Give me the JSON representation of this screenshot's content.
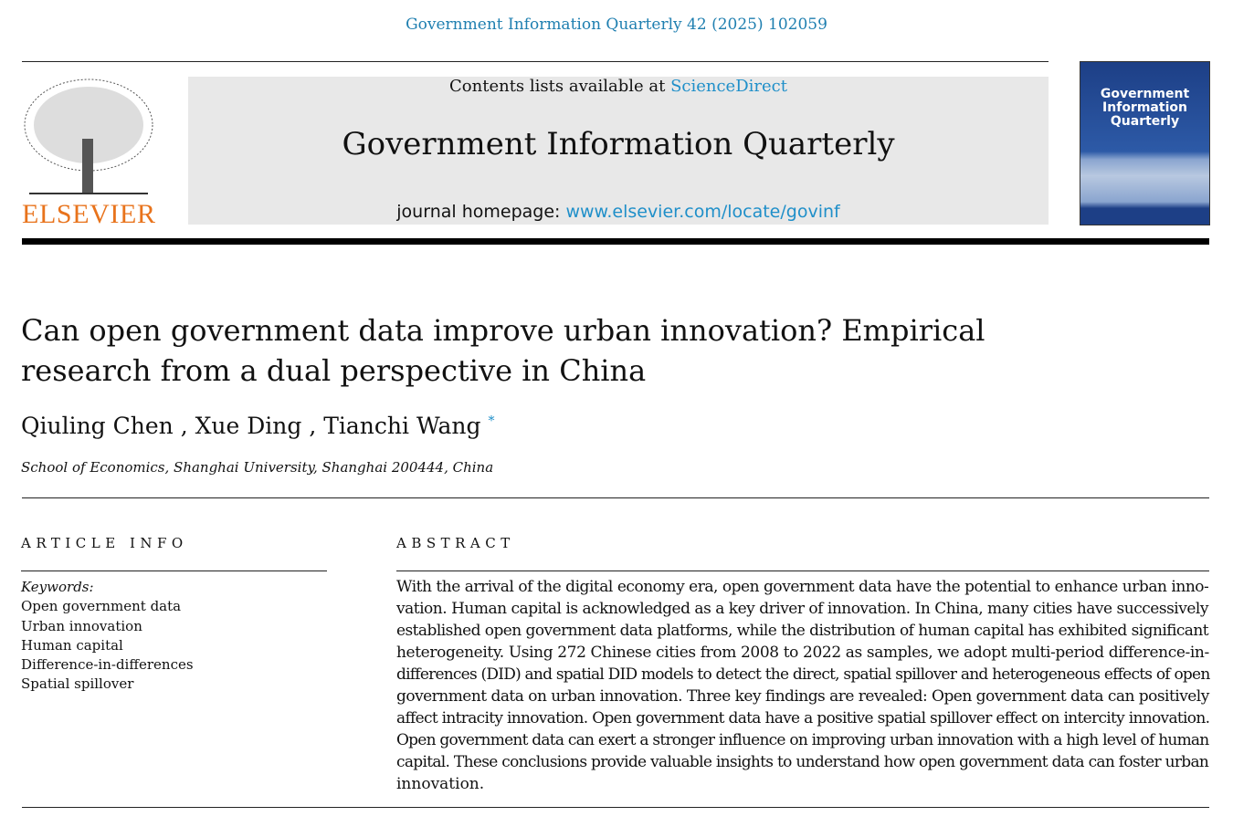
{
  "citation": "Government Information Quarterly 42 (2025) 102059",
  "header": {
    "publisher": "ELSEVIER",
    "contents_prefix": "Contents lists available at ",
    "sciencedirect": "ScienceDirect",
    "journal_title": "Government Information Quarterly",
    "homepage_prefix": "journal homepage: ",
    "homepage_url": "www.elsevier.com/locate/govinf",
    "cover_title": "Government Information Quarterly"
  },
  "article": {
    "title": "Can open government data improve urban innovation? Empirical research from a dual perspective in China",
    "authors": "Qiuling Chen , Xue Ding , Tianchi Wang",
    "corresponding_mark": "*",
    "affiliation": "School of Economics, Shanghai University, Shanghai 200444, China"
  },
  "article_info": {
    "heading": "ARTICLE INFO",
    "keywords_label": "Keywords:",
    "keywords": [
      "Open government data",
      "Urban innovation",
      "Human capital",
      "Difference-in-differences",
      "Spatial spillover"
    ]
  },
  "abstract": {
    "heading": "ABSTRACT",
    "lines": [
      "With the arrival of the digital economy era, open government data have the potential to enhance urban inno-",
      "vation. Human capital is acknowledged as a key driver of innovation. In China, many cities have successively",
      "established open government data platforms, while the distribution of human capital has exhibited significant",
      "heterogeneity. Using 272 Chinese cities from 2008 to 2022 as samples, we adopt multi-period difference-in-",
      "differences (DID) and spatial DID models to detect the direct, spatial spillover and heterogeneous effects of open",
      "government data on urban innovation. Three key findings are revealed: Open government data can positively",
      "affect intracity innovation. Open government data have a positive spatial spillover effect on intercity innovation.",
      "Open government data can exert a stronger influence on improving urban innovation with a high level of human",
      "capital. These conclusions provide valuable insights to understand how open government data can foster urban",
      "innovation."
    ]
  }
}
